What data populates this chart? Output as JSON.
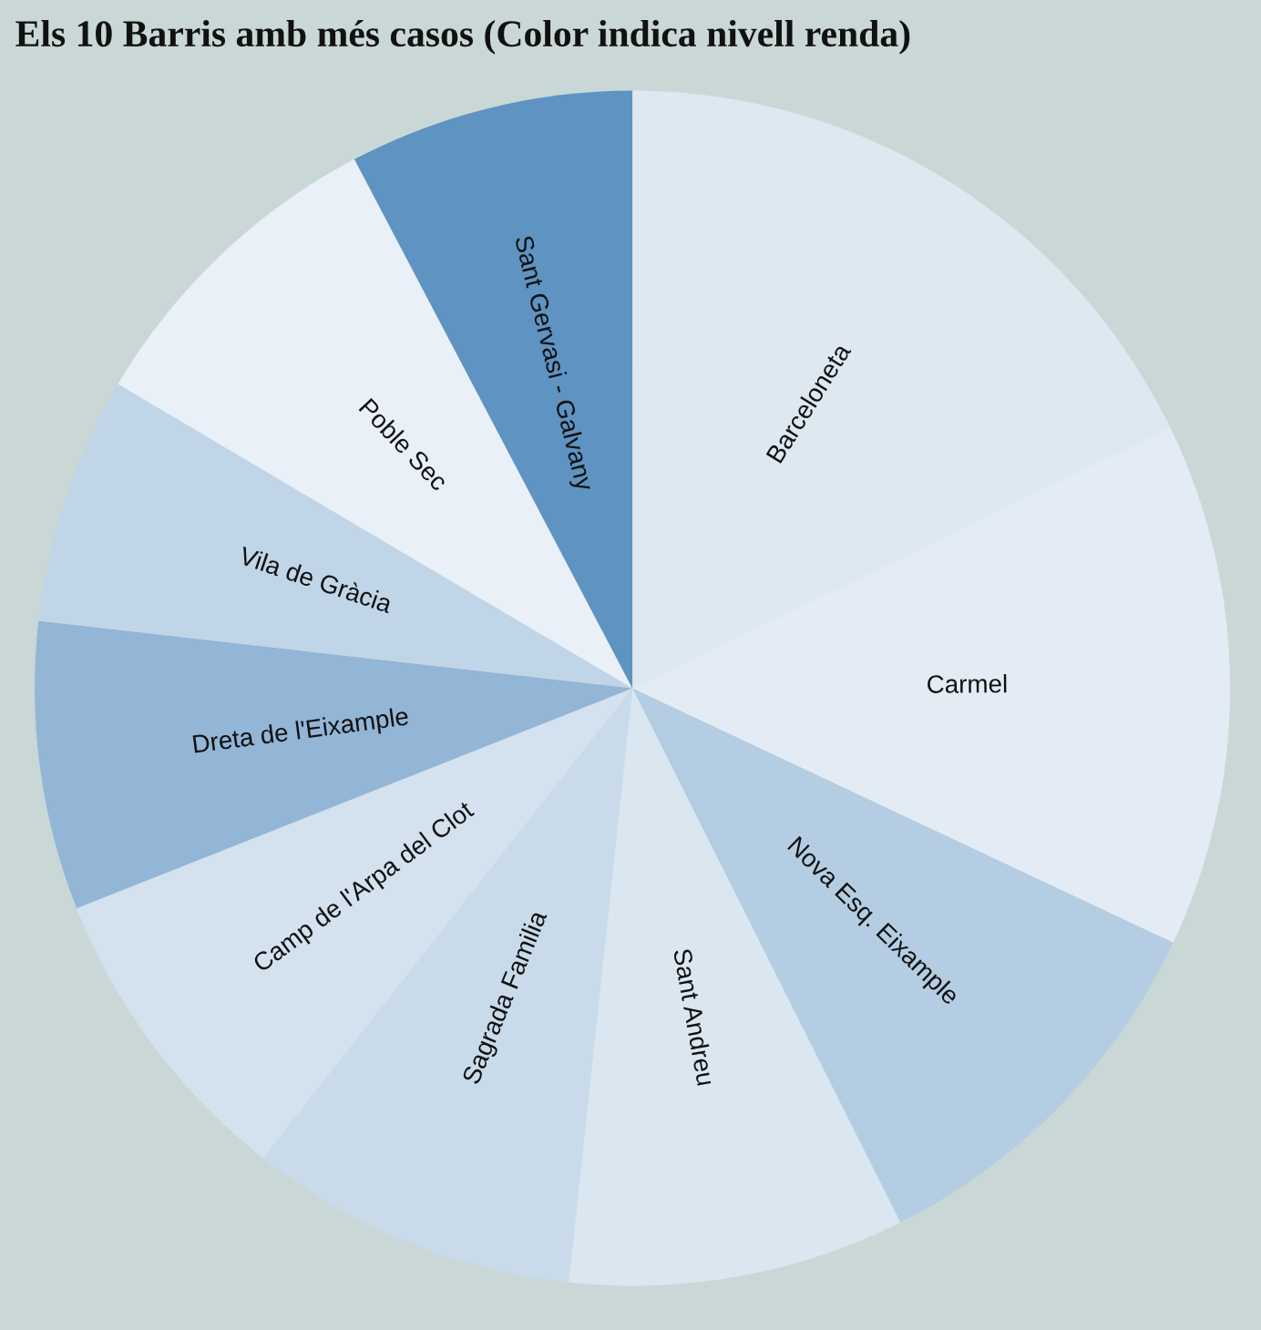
{
  "chart_data": {
    "type": "pie",
    "title": "Els 10 Barris amb més casos (Color indica nivell renda)",
    "categories": [
      "Barceloneta",
      "Carmel",
      "Nova Esq. Eixample",
      "Sant Andreu",
      "Sagrada Familia",
      "Camp de l'Arpa del Clot",
      "Dreta de l'Eixample",
      "Vila de Gràcia",
      "Poble Sec",
      "Sant Gervasi - Galvany"
    ],
    "values": [
      17.8,
      14.2,
      10.6,
      9.1,
      8.9,
      8.4,
      7.8,
      6.7,
      8.8,
      7.7
    ],
    "colors": [
      "#dde8f1",
      "#e3ecf4",
      "#b4cde2",
      "#dae6f0",
      "#c9dbea",
      "#d3e2ee",
      "#93b5d6",
      "#c0d5e7",
      "#e9f0f7",
      "#5e93c2"
    ]
  }
}
